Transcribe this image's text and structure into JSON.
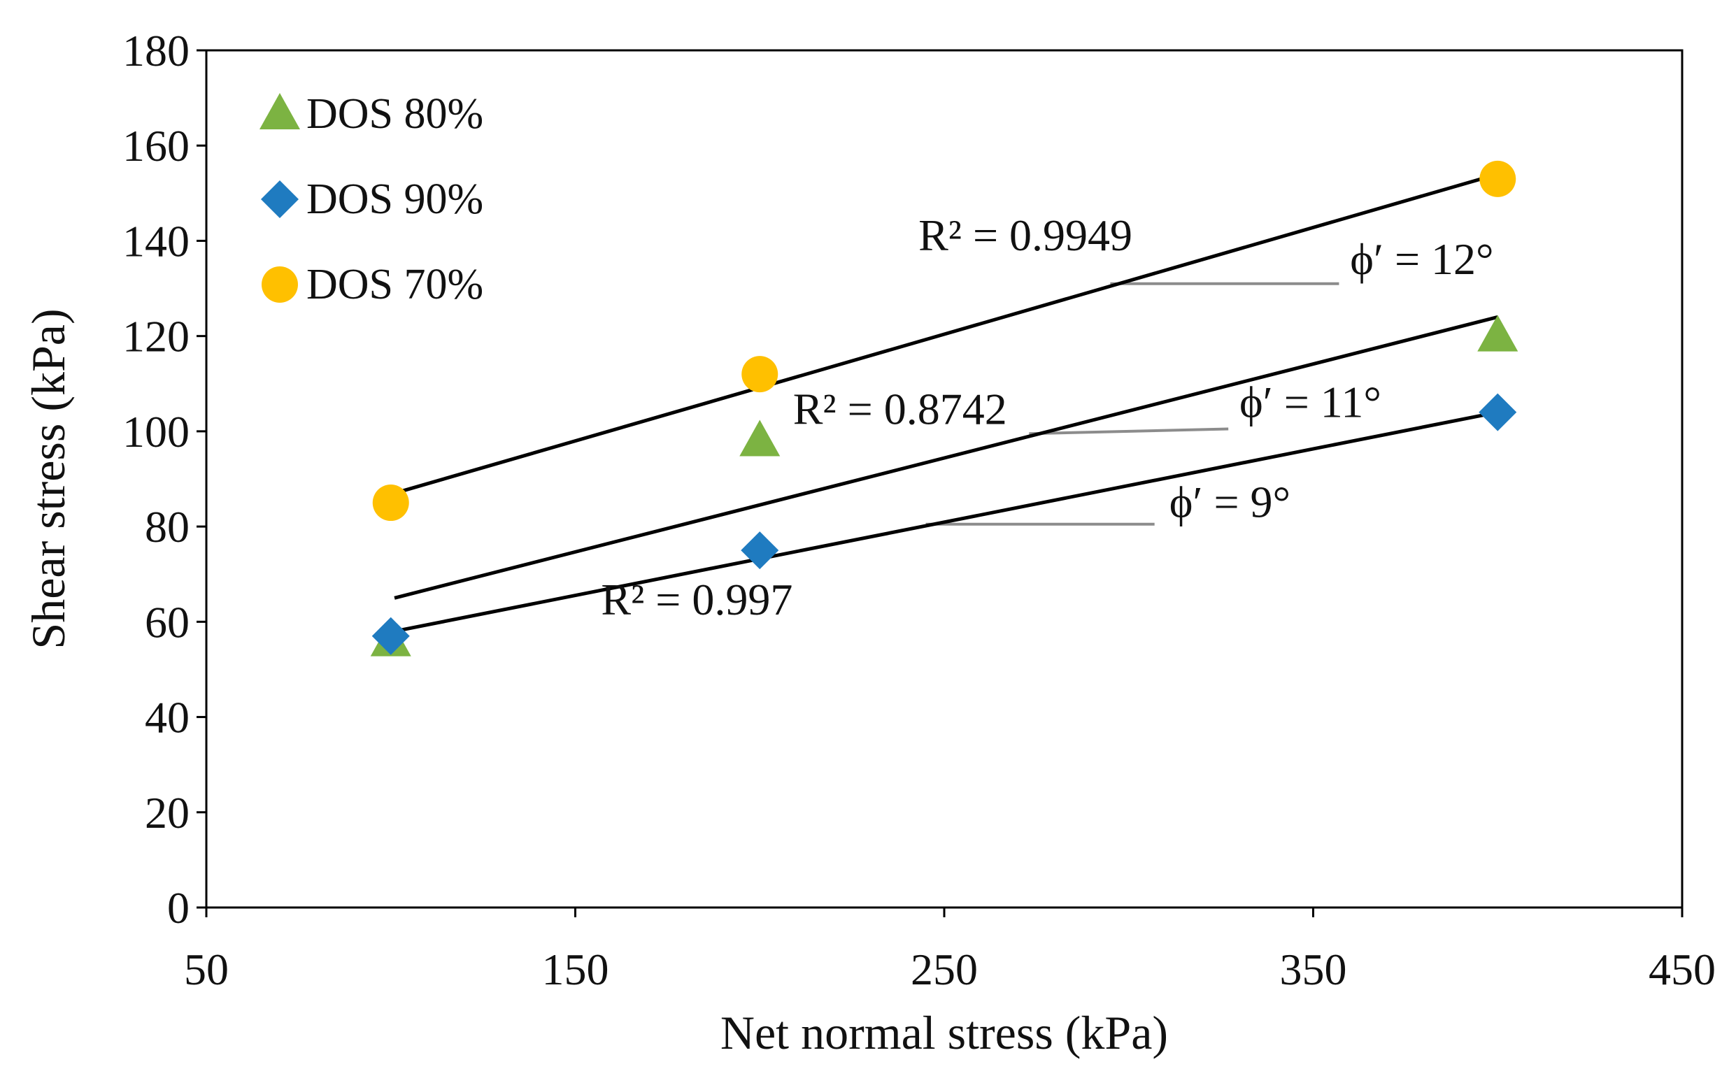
{
  "chart_data": {
    "type": "scatter",
    "title": "",
    "xlabel": "Net normal stress (kPa)",
    "ylabel": "Shear stress (kPa)",
    "xlim": [
      50,
      450
    ],
    "ylim": [
      0,
      180
    ],
    "xticks": [
      50,
      150,
      250,
      350,
      450
    ],
    "yticks": [
      0,
      20,
      40,
      60,
      80,
      100,
      120,
      140,
      160,
      180
    ],
    "grid": false,
    "legend_position": "top-left",
    "series": [
      {
        "name": "DOS 80%",
        "marker": "triangle",
        "color": "#7cb342",
        "points": [
          [
            100,
            56
          ],
          [
            200,
            98
          ],
          [
            400,
            120
          ]
        ],
        "fit_line": [
          [
            101,
            65
          ],
          [
            400,
            124
          ]
        ],
        "r2_label": "R² = 0.8742",
        "phi_label": "ϕʹ = 11°"
      },
      {
        "name": "DOS 90%",
        "marker": "diamond",
        "color": "#1f7bc0",
        "points": [
          [
            100,
            57
          ],
          [
            200,
            75
          ],
          [
            400,
            104
          ]
        ],
        "fit_line": [
          [
            101,
            58
          ],
          [
            400,
            104
          ]
        ],
        "r2_label": "R² = 0.997",
        "phi_label": "ϕʹ = 9°"
      },
      {
        "name": "DOS 70%",
        "marker": "circle",
        "color": "#ffc000",
        "points": [
          [
            100,
            85
          ],
          [
            200,
            112
          ],
          [
            400,
            153
          ]
        ],
        "fit_line": [
          [
            101,
            87
          ],
          [
            400,
            154
          ]
        ],
        "r2_label": "R² = 0.9949",
        "phi_label": "ϕʹ = 12°"
      }
    ],
    "annotation_guides": [
      {
        "series": "DOS 70%",
        "from": [
          295,
          131
        ],
        "to": [
          357,
          131
        ]
      },
      {
        "series": "DOS 80%",
        "from": [
          273,
          99.5
        ],
        "to": [
          327,
          100.5
        ]
      },
      {
        "series": "DOS 90%",
        "from": [
          245,
          80.5
        ],
        "to": [
          307,
          80.5
        ]
      }
    ],
    "annotation_positions": {
      "DOS 70%": {
        "r2": [
          243,
          138
        ],
        "phi": [
          360,
          133
        ]
      },
      "DOS 80%": {
        "r2": [
          209,
          101.5
        ],
        "phi": [
          330,
          103
        ]
      },
      "DOS 90%": {
        "r2": [
          157,
          61.5
        ],
        "phi": [
          311,
          82
        ]
      }
    }
  }
}
